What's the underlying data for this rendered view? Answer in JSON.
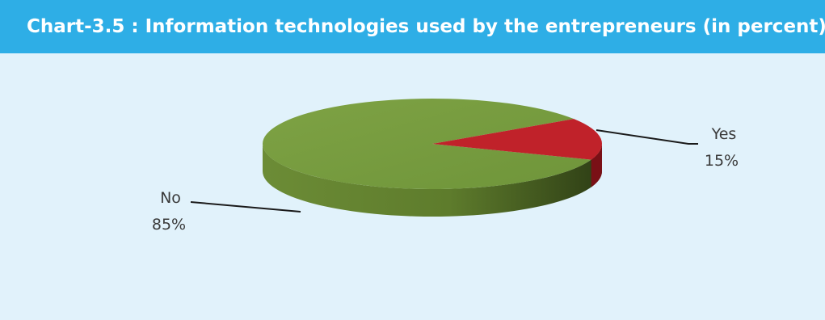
{
  "title": "Chart-3.5 : Information technologies used by the entrepreneurs (in percent)",
  "colors": {
    "title_bar": "#2eaee6",
    "background": "#e1f2fb",
    "no_slice": "#779c3f",
    "yes_slice": "#c0222a"
  },
  "chart_data": {
    "type": "pie",
    "style": "3d",
    "title": "Chart-3.5 : Information technologies used by the entrepreneurs (in percent)",
    "categories": [
      "Yes",
      "No"
    ],
    "values": [
      15,
      85
    ],
    "labels": [
      {
        "name": "Yes",
        "value": "15%"
      },
      {
        "name": "No",
        "value": "85%"
      }
    ]
  }
}
